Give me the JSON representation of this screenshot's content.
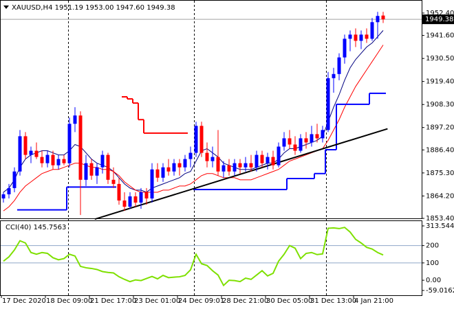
{
  "chart_data": [
    {
      "type": "candlestick",
      "title": "XAUUSD,H4  1951.19 1953.00 1947.60 1949.38",
      "categories": [
        "17 Dec 2020",
        null,
        null,
        null,
        null,
        null,
        null,
        null,
        "18 Dec 09:00",
        null,
        null,
        null,
        null,
        null,
        null,
        null,
        "21 Dec 17:00",
        null,
        null,
        null,
        null,
        null,
        null,
        null,
        "23 Dec 01:00",
        null,
        null,
        null,
        null,
        null,
        null,
        null,
        "24 Dec 09:01",
        null,
        null,
        null,
        null,
        null,
        null,
        null,
        "28 Dec 21:00",
        null,
        null,
        null,
        null,
        null,
        null,
        null,
        "30 Dec 05:00",
        null,
        null,
        null,
        null,
        null,
        null,
        null,
        "31 Dec 13:00",
        null,
        null,
        null,
        null,
        null,
        null,
        null,
        "4 Jan 21:00",
        null,
        null,
        null,
        null,
        null
      ],
      "open": [
        1863,
        1865,
        1868,
        1876,
        1893,
        1884,
        1886,
        1883,
        1880,
        1884,
        1879,
        1882,
        1880,
        1899,
        1903,
        1872,
        1880,
        1874,
        1878,
        1884,
        1872,
        1870,
        1862,
        1859,
        1864,
        1861,
        1866,
        1863,
        1877,
        1873,
        1878,
        1876,
        1880,
        1878,
        1882,
        1885,
        1898,
        1885,
        1881,
        1883,
        1876,
        1879,
        1876,
        1880,
        1878,
        1880,
        1878,
        1884,
        1880,
        1883,
        1879,
        1888,
        1892,
        1889,
        1886,
        1892,
        1890,
        1894,
        1892,
        1896,
        1921,
        1923,
        1931,
        1940,
        1942,
        1939,
        1942,
        1940,
        1948,
        1951.19
      ],
      "high": [
        1866,
        1870,
        1878,
        1896,
        1895,
        1888,
        1890,
        1886,
        1886,
        1886,
        1884,
        1884,
        1902,
        1907,
        1905,
        1884,
        1882,
        1880,
        1886,
        1885,
        1878,
        1873,
        1866,
        1866,
        1866,
        1868,
        1868,
        1880,
        1880,
        1880,
        1882,
        1882,
        1882,
        1884,
        1888,
        1900,
        1900,
        1890,
        1888,
        1896,
        1881,
        1882,
        1882,
        1882,
        1883,
        1884,
        1886,
        1886,
        1885,
        1886,
        1890,
        1895,
        1896,
        1893,
        1894,
        1895,
        1898,
        1899,
        1898,
        1924,
        1926,
        1933,
        1942,
        1944,
        1945,
        1944,
        1945,
        1950,
        1953,
        1953.0
      ],
      "low": [
        1861,
        1863,
        1866,
        1874,
        1882,
        1880,
        1882,
        1878,
        1878,
        1877,
        1877,
        1879,
        1878,
        1895,
        1855,
        1869,
        1872,
        1870,
        1875,
        1870,
        1868,
        1860,
        1857,
        1858,
        1859,
        1858,
        1860,
        1861,
        1871,
        1871,
        1874,
        1874,
        1874,
        1876,
        1878,
        1883,
        1883,
        1878,
        1878,
        1874,
        1873,
        1874,
        1874,
        1875,
        1876,
        1876,
        1876,
        1878,
        1877,
        1877,
        1878,
        1886,
        1887,
        1884,
        1885,
        1887,
        1888,
        1890,
        1890,
        1895,
        1914,
        1920,
        1928,
        1934,
        1936,
        1935,
        1938,
        1939,
        1940,
        1947.6
      ],
      "close": [
        1865,
        1868,
        1876,
        1893,
        1884,
        1886,
        1883,
        1880,
        1884,
        1879,
        1882,
        1880,
        1899,
        1903,
        1872,
        1880,
        1874,
        1878,
        1884,
        1872,
        1870,
        1862,
        1859,
        1864,
        1861,
        1866,
        1863,
        1877,
        1873,
        1878,
        1876,
        1880,
        1878,
        1882,
        1885,
        1898,
        1885,
        1881,
        1883,
        1876,
        1879,
        1876,
        1880,
        1878,
        1880,
        1878,
        1884,
        1880,
        1883,
        1879,
        1888,
        1892,
        1889,
        1886,
        1892,
        1890,
        1894,
        1892,
        1896,
        1921,
        1923,
        1931,
        1940,
        1942,
        1939,
        1942,
        1940,
        1948,
        1951,
        1949.38
      ],
      "up_color": "#0000ff",
      "down_color": "#ff0000",
      "lines": [
        {
          "style": "smooth",
          "color": "#000080",
          "values": [
            1866,
            1868,
            1872,
            1878,
            1882,
            1884,
            1885,
            1886,
            1886,
            1885,
            1884,
            1884,
            1886,
            1889,
            1888,
            1885,
            1882,
            1880,
            1879,
            1878,
            1876,
            1873,
            1870,
            1868,
            1867,
            1867,
            1866,
            1868,
            1869,
            1870,
            1871,
            1872,
            1873,
            1875,
            1876,
            1881,
            1886,
            1887,
            1885,
            1883,
            1880,
            1879,
            1878,
            1877,
            1877,
            1877,
            1878,
            1879,
            1880,
            1880,
            1882,
            1885,
            1887,
            1887,
            1888,
            1889,
            1890,
            1891,
            1893,
            1900,
            1907,
            1913,
            1920,
            1926,
            1930,
            1933,
            1936,
            1938,
            1941,
            1944
          ]
        },
        {
          "style": "smooth",
          "color": "#ff0000",
          "values": [
            1857,
            1859,
            1862,
            1866,
            1869,
            1871,
            1873,
            1875,
            1876,
            1877,
            1877,
            1878,
            1879,
            1880,
            1880,
            1879,
            1878,
            1878,
            1877,
            1877,
            1876,
            1874,
            1871,
            1869,
            1867,
            1866,
            1866,
            1866,
            1866,
            1867,
            1867,
            1868,
            1869,
            1869,
            1870,
            1872,
            1874,
            1875,
            1875,
            1874,
            1873,
            1873,
            1873,
            1872,
            1872,
            1872,
            1873,
            1874,
            1875,
            1876,
            1877,
            1879,
            1881,
            1882,
            1883,
            1884,
            1885,
            1886,
            1887,
            1891,
            1896,
            1901,
            1907,
            1912,
            1917,
            1921,
            1925,
            1929,
            1933,
            1937
          ]
        },
        {
          "style": "step",
          "color": "#0000ff",
          "values": [
            null,
            null,
            null,
            1857.5,
            1857.5,
            1857.5,
            1857.5,
            1857.5,
            1857.5,
            1857.5,
            1857.5,
            1857.5,
            1868.5,
            1868.5,
            1868.5,
            1868.5,
            1868.5,
            1868.5,
            1868.5,
            1868.5,
            1868.5,
            null,
            null,
            null,
            null,
            null,
            null,
            null,
            null,
            null,
            null,
            null,
            null,
            null,
            null,
            1867.3,
            1867.3,
            1867.3,
            1867.3,
            1867.3,
            1867.3,
            1867.3,
            1867.3,
            1867.3,
            1867.3,
            1867.3,
            1867.3,
            1867.3,
            1867.3,
            1867.3,
            1867.3,
            1867.3,
            1872.6,
            1872.6,
            1872.6,
            1872.6,
            1872.6,
            1875,
            1875,
            1886.5,
            1886.5,
            1908.4,
            1908.4,
            1908.4,
            1908.4,
            1908.4,
            1908.4,
            1913.7,
            1913.7,
            1913.7
          ]
        },
        {
          "style": "step",
          "color": "#ff0000",
          "values": [
            null,
            null,
            null,
            null,
            null,
            null,
            null,
            null,
            null,
            null,
            null,
            null,
            null,
            null,
            null,
            null,
            null,
            null,
            null,
            null,
            null,
            null,
            1912,
            1911,
            1909,
            1901,
            1894.5,
            1894.5,
            1894.5,
            1894.5,
            1894.5,
            1894.5,
            1894.5,
            1894.5,
            null,
            null,
            null,
            null,
            null,
            null,
            null,
            null,
            null,
            null,
            null,
            null,
            null,
            null,
            null,
            null,
            null,
            null,
            null,
            null,
            null,
            null,
            null,
            null,
            null,
            null,
            null,
            null,
            null,
            null,
            null,
            null,
            null,
            null,
            null,
            null
          ]
        }
      ],
      "trendline": {
        "color": "#000000",
        "x": [
          16.6,
          69.8
        ],
        "values": [
          1853.0,
          1896.6
        ]
      },
      "ylim": [
        1853.4,
        1952.4
      ],
      "yticks": [
        {
          "value": 1952.4,
          "label": "1952.40"
        },
        {
          "value": 1941.6,
          "label": "1941.60"
        },
        {
          "value": 1930.5,
          "label": "1930.50"
        },
        {
          "value": 1919.4,
          "label": "1919.40"
        },
        {
          "value": 1908.3,
          "label": "1908.30"
        },
        {
          "value": 1897.2,
          "label": "1897.20"
        },
        {
          "value": 1886.4,
          "label": "1886.40"
        },
        {
          "value": 1875.3,
          "label": "1875.30"
        },
        {
          "value": 1864.2,
          "label": "1864.20"
        },
        {
          "value": 1853.4,
          "label": "1853.40"
        }
      ]
    },
    {
      "type": "line",
      "title": "CCI(40) 145.7563",
      "color": "#7ee000",
      "values": [
        110,
        135,
        175,
        228,
        215,
        160,
        150,
        160,
        155,
        130,
        118,
        125,
        150,
        140,
        80,
        72,
        68,
        62,
        50,
        45,
        42,
        20,
        5,
        -8,
        2,
        -2,
        10,
        22,
        8,
        28,
        15,
        18,
        20,
        28,
        60,
        150,
        95,
        85,
        55,
        30,
        -30,
        0,
        -2,
        -8,
        12,
        5,
        30,
        55,
        25,
        40,
        110,
        150,
        200,
        185,
        125,
        155,
        160,
        148,
        152,
        300,
        302,
        298,
        305,
        278,
        236,
        215,
        190,
        180,
        160,
        145.7563
      ],
      "ylim": [
        -59.0162,
        313.5441
      ],
      "yticks": [
        313.5441,
        200,
        100,
        {
          "value": 0,
          "label": "0.00"
        },
        -59.0162
      ],
      "level_lines": [
        200,
        100
      ]
    }
  ]
}
